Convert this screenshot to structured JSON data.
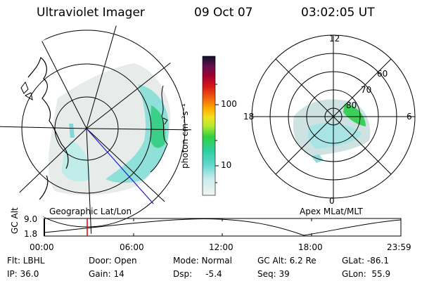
{
  "header": {
    "instrument": "Ultraviolet Imager",
    "date": "09 Oct 07",
    "time": "03:02:05 UT"
  },
  "left_panel": {
    "label": "Geographic Lat/Lon"
  },
  "right_panel": {
    "label": "Apex MLat/MLT",
    "mlt_labels": [
      "12",
      "18",
      "6",
      "0"
    ],
    "lat_labels": [
      "60",
      "70",
      "80"
    ]
  },
  "colorbar": {
    "unit_label": "photon cm⁻²s⁻¹",
    "ticks": [
      "100",
      "10"
    ],
    "scale": "log"
  },
  "timeline": {
    "ylabel": "GC Alt",
    "ytick_top": "9.0",
    "ytick_bottom": "1.8",
    "xticks": [
      "00:00",
      "06:00",
      "12:00",
      "18:00",
      "23:59"
    ],
    "marker_color": "#e00000"
  },
  "info": {
    "flt": "Flt: LBHL",
    "ip": "IP: 36.0",
    "door": "Door: Open",
    "gain": "Gain: 14",
    "mode": "Mode: Normal",
    "dsp": "Dsp:     -5.4",
    "gcalt": "GC Alt: 6.2 Re",
    "seq": "Seq: 39",
    "glat": "GLat: -86.1",
    "glon": "GLon:  55.9"
  }
}
